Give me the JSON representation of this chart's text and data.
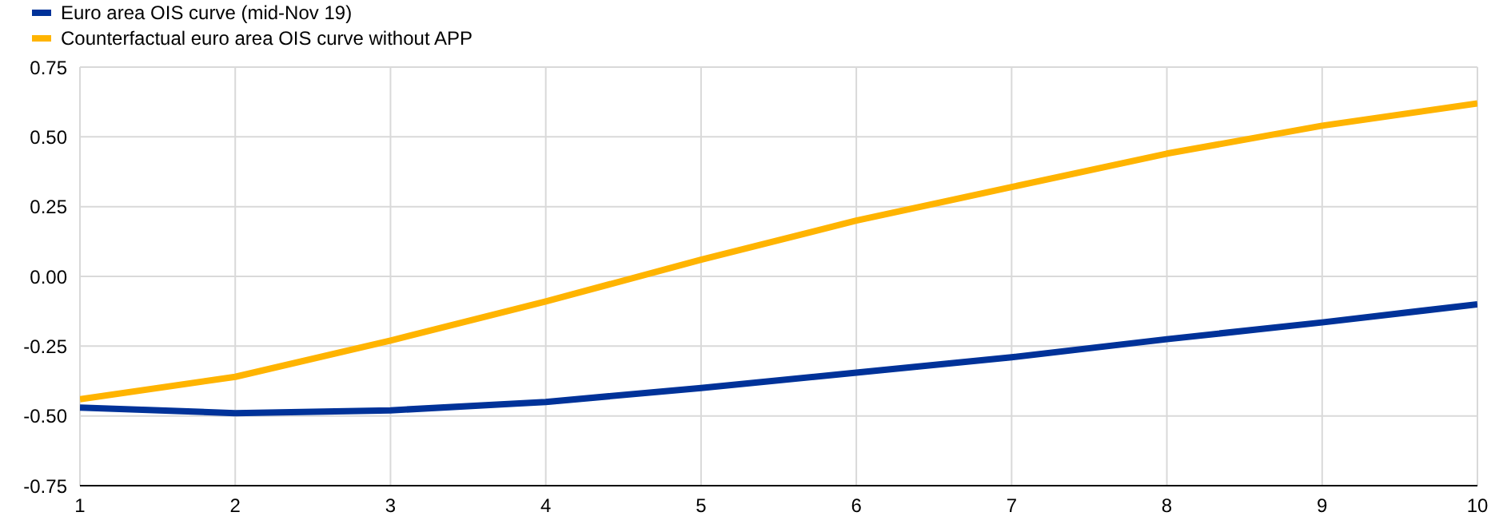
{
  "chart_data": {
    "type": "line",
    "x": [
      1,
      2,
      3,
      4,
      5,
      6,
      7,
      8,
      9,
      10
    ],
    "series": [
      {
        "name": "Euro area OIS curve (mid-Nov 19)",
        "color": "#003299",
        "values": [
          -0.47,
          -0.49,
          -0.48,
          -0.45,
          -0.4,
          -0.345,
          -0.29,
          -0.225,
          -0.165,
          -0.1
        ]
      },
      {
        "name": "Counterfactual euro area OIS curve without APP",
        "color": "#ffb400",
        "values": [
          -0.44,
          -0.36,
          -0.23,
          -0.09,
          0.06,
          0.2,
          0.32,
          0.44,
          0.54,
          0.62
        ]
      }
    ],
    "xlim": [
      1,
      10
    ],
    "xticks": [
      1,
      2,
      3,
      4,
      5,
      6,
      7,
      8,
      9,
      10
    ],
    "ylim": [
      -0.75,
      0.75
    ],
    "yticks": [
      {
        "value": -0.75,
        "label": "-0.75"
      },
      {
        "value": -0.5,
        "label": "-0.50"
      },
      {
        "value": -0.25,
        "label": "-0.25"
      },
      {
        "value": 0,
        "label": "0.00"
      },
      {
        "value": 0.25,
        "label": "0.25"
      },
      {
        "value": 0.5,
        "label": "0.50"
      },
      {
        "value": 0.75,
        "label": "0.75"
      }
    ],
    "grid": true,
    "legend": "top left",
    "marker": "none",
    "line_style": "solid"
  }
}
